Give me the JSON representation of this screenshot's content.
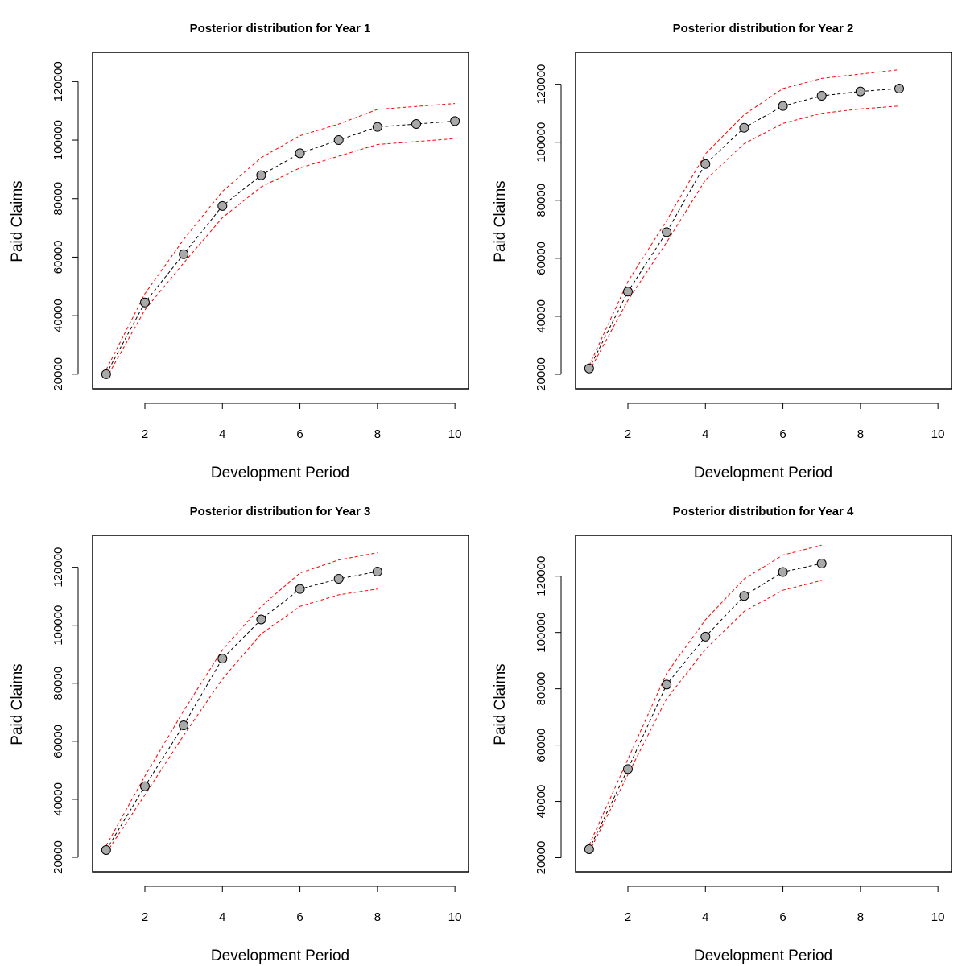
{
  "chart_data": [
    {
      "type": "line",
      "title": "Posterior distribution for Year 1",
      "xlabel": "Development Period",
      "ylabel": "Paid Claims",
      "xlim": [
        0.65,
        10.35
      ],
      "ylim": [
        15000,
        130000
      ],
      "xticks": [
        "2",
        "4",
        "6",
        "8",
        "10"
      ],
      "yticks": [
        "20000",
        "40000",
        "60000",
        "80000",
        "100000",
        "120000"
      ],
      "x": [
        1,
        2,
        3,
        4,
        5,
        6,
        7,
        8,
        9,
        10
      ],
      "series": [
        {
          "role": "median",
          "values": [
            20000,
            44500,
            61000,
            77500,
            88000,
            95500,
            100000,
            104500,
            105500,
            106500
          ]
        },
        {
          "role": "upper",
          "values": [
            21500,
            47500,
            66000,
            82500,
            94000,
            101500,
            105500,
            110500,
            111500,
            112500
          ]
        },
        {
          "role": "lower",
          "values": [
            18500,
            42000,
            58000,
            73500,
            84000,
            90500,
            94500,
            98500,
            99500,
            100500
          ]
        }
      ]
    },
    {
      "type": "line",
      "title": "Posterior distribution for Year 2",
      "xlabel": "Development Period",
      "ylabel": "Paid Claims",
      "xlim": [
        0.65,
        10.35
      ],
      "ylim": [
        15000,
        131000
      ],
      "xticks": [
        "2",
        "4",
        "6",
        "8",
        "10"
      ],
      "yticks": [
        "20000",
        "40000",
        "60000",
        "80000",
        "100000",
        "120000"
      ],
      "x": [
        1,
        2,
        3,
        4,
        5,
        6,
        7,
        8,
        9
      ],
      "series": [
        {
          "role": "median",
          "values": [
            22000,
            48500,
            69000,
            92500,
            105000,
            112500,
            116000,
            117500,
            118500
          ]
        },
        {
          "role": "upper",
          "values": [
            23000,
            52000,
            73000,
            96000,
            109500,
            118500,
            122000,
            123500,
            125000
          ]
        },
        {
          "role": "lower",
          "values": [
            21000,
            45500,
            65500,
            87000,
            99500,
            106500,
            110000,
            111500,
            112500
          ]
        }
      ]
    },
    {
      "type": "line",
      "title": "Posterior distribution for Year 3",
      "xlabel": "Development Period",
      "ylabel": "Paid Claims",
      "xlim": [
        0.65,
        10.35
      ],
      "ylim": [
        15000,
        131000
      ],
      "xticks": [
        "2",
        "4",
        "6",
        "8",
        "10"
      ],
      "yticks": [
        "20000",
        "40000",
        "60000",
        "80000",
        "100000",
        "120000"
      ],
      "x": [
        1,
        2,
        3,
        4,
        5,
        6,
        7,
        8
      ],
      "series": [
        {
          "role": "median",
          "values": [
            22500,
            44500,
            65500,
            88500,
            102000,
            112500,
            116000,
            118500
          ]
        },
        {
          "role": "upper",
          "values": [
            24000,
            48000,
            70500,
            91500,
            106500,
            118000,
            122500,
            125000
          ]
        },
        {
          "role": "lower",
          "values": [
            21500,
            41500,
            62000,
            81500,
            97000,
            106500,
            110500,
            112500
          ]
        }
      ]
    },
    {
      "type": "line",
      "title": "Posterior distribution for Year 4",
      "xlabel": "Development Period",
      "ylabel": "Paid Claims",
      "xlim": [
        0.65,
        10.35
      ],
      "ylim": [
        15000,
        134500
      ],
      "xticks": [
        "2",
        "4",
        "6",
        "8",
        "10"
      ],
      "yticks": [
        "20000",
        "40000",
        "60000",
        "80000",
        "100000",
        "120000"
      ],
      "x": [
        1,
        2,
        3,
        4,
        5,
        6,
        7
      ],
      "series": [
        {
          "role": "median",
          "values": [
            23000,
            51500,
            81500,
            98500,
            113000,
            121500,
            124500
          ]
        },
        {
          "role": "upper",
          "values": [
            24500,
            55000,
            85500,
            104500,
            119000,
            127500,
            131000
          ]
        },
        {
          "role": "lower",
          "values": [
            22000,
            49500,
            76500,
            94000,
            107500,
            115000,
            118500
          ]
        }
      ]
    }
  ],
  "colors": {
    "median_line": "#000000",
    "interval_line": "#ff0000",
    "point_fill": "#a9a9a9",
    "point_stroke": "#000000",
    "frame": "#000000"
  }
}
